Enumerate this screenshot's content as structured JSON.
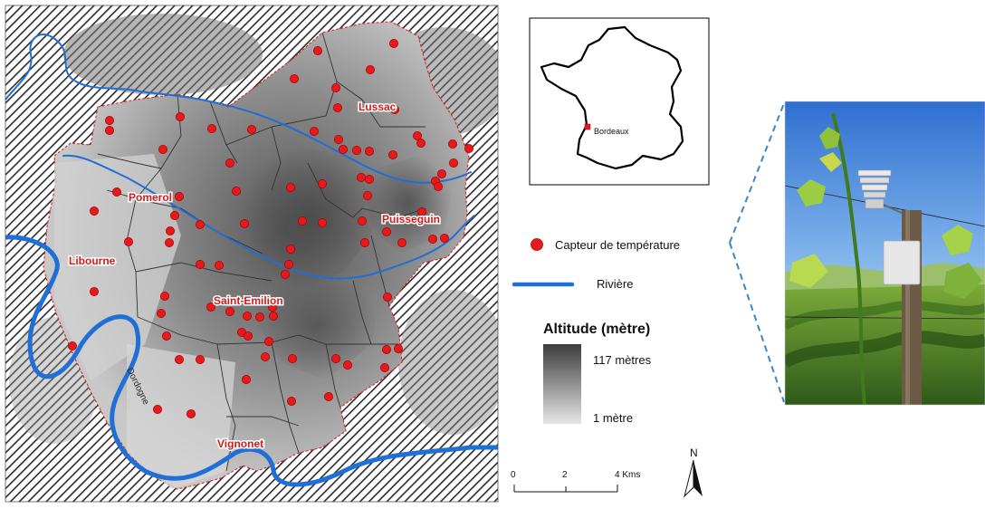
{
  "map": {
    "place_names": {
      "lussac": "Lussac",
      "pomerol": "Pomerol",
      "puisseguin": "Puisseguin",
      "libourne": "Libourne",
      "saint_emilion": "Saint-Emilion",
      "vignonet": "Vignonet"
    },
    "river_name": "Dordogne",
    "sensor_count": 86
  },
  "inset": {
    "city_label": "Bordeaux"
  },
  "legend": {
    "sensor_label": "Capteur de température",
    "river_label": "Rivière",
    "altitude_title": "Altitude (mètre)",
    "altitude_max": "117 mètres",
    "altitude_min": "1 mètre"
  },
  "scalebar": {
    "ticks": [
      "0",
      "2",
      "4 Kms"
    ]
  },
  "north_arrow": {
    "label": "N"
  },
  "colors": {
    "sensor": "#e41a1c",
    "river": "#1f6fd6",
    "boundary": "#d62728",
    "commune_line": "#333333",
    "hatch": "#2a2a2a",
    "photo_link": "#3a86c8"
  },
  "photo": {
    "subject": "temperature-sensor-in-vineyard"
  }
}
